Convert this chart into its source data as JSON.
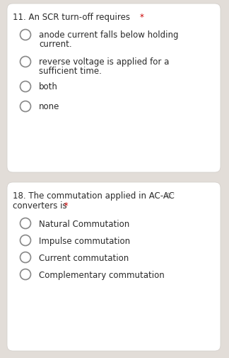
{
  "bg_color": "#e2ddd8",
  "card_color": "#ffffff",
  "question1": {
    "number": "11.",
    "text": "An SCR turn-off requires",
    "options": [
      [
        "anode current falls below holding",
        "current."
      ],
      [
        "reverse voltage is applied for a",
        "sufficient time."
      ],
      [
        "both"
      ],
      [
        "none"
      ]
    ]
  },
  "question2": {
    "number": "18.",
    "text_line1": "18. The commutation applied in AC-AC",
    "text_line2": "converters is",
    "options": [
      [
        "Natural Commutation"
      ],
      [
        "Impulse commutation"
      ],
      [
        "Current commutation"
      ],
      [
        "Complementary commutation"
      ]
    ]
  },
  "font_size_q": 8.5,
  "font_size_opt": 8.5,
  "text_color": "#2a2a2a",
  "star_color": "#cc0000",
  "circle_edge_color": "#888888",
  "circle_fill": "#ffffff",
  "circle_lw": 1.2
}
